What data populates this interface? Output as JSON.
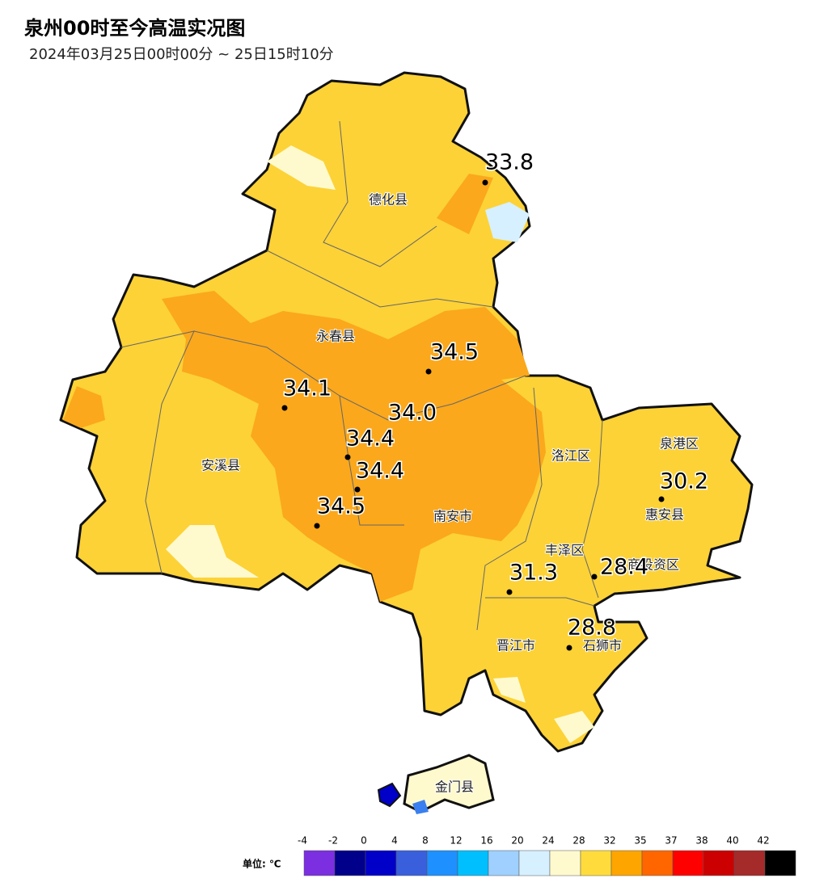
{
  "header": {
    "title": "泉州00时至今高温实况图",
    "subtitle": "2024年03月25日00时00分 ~ 25日15时10分"
  },
  "districts": [
    "德化县",
    "永春县",
    "安溪县",
    "南安市",
    "洛江区",
    "泉港区",
    "惠安县",
    "丰泽区",
    "台商投资区",
    "晋江市",
    "石狮市",
    "金门县"
  ],
  "readings": [
    33.8,
    34.5,
    34.1,
    {
      "value": 34,
      "label": "34.0"
    },
    34.4,
    34.4,
    34.5,
    30.2,
    31.3,
    28.4,
    28.8
  ],
  "legend": {
    "unit": "单位: ℃",
    "ticks": [
      -4,
      -2,
      0,
      4,
      8,
      12,
      16,
      20,
      24,
      28,
      32,
      35,
      37,
      38,
      40,
      42
    ],
    "colors": [
      "#7b2fe0",
      "#00008b",
      "#0000c8",
      "#3a5fdc",
      "#1e90ff",
      "#00bfff",
      "#9fd0ff",
      "#d7f0ff",
      "#fffacd",
      "#ffdc3c",
      "#ffa500",
      "#ff6600",
      "#ff0000",
      "#cc0000",
      "#a52a2a",
      "#000000"
    ]
  }
}
